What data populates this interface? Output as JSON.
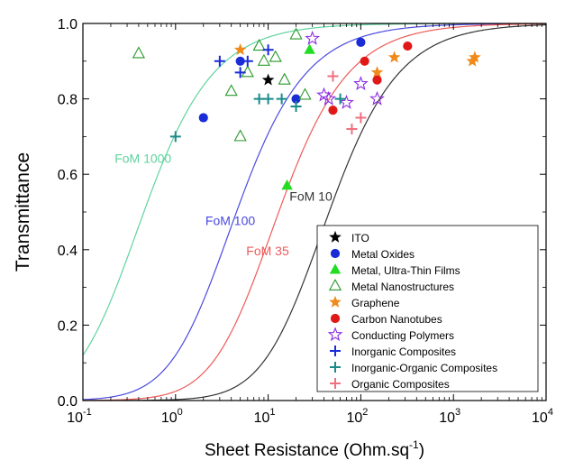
{
  "chart_data": {
    "type": "scatter",
    "xlabel": "Sheet Resistance (Ohm.sq",
    "xlabel_sup": "-1",
    "xlabel_close": ")",
    "ylabel": "Transmittance",
    "x_scale": "log",
    "xlim": [
      0.1,
      10000
    ],
    "ylim": [
      0.0,
      1.0
    ],
    "x_ticks": [
      {
        "base": "10",
        "exp": "-1",
        "value": 0.1
      },
      {
        "base": "10",
        "exp": "0",
        "value": 1
      },
      {
        "base": "10",
        "exp": "1",
        "value": 10
      },
      {
        "base": "10",
        "exp": "2",
        "value": 100
      },
      {
        "base": "10",
        "exp": "3",
        "value": 1000
      },
      {
        "base": "10",
        "exp": "4",
        "value": 10000
      }
    ],
    "y_ticks": [
      "0.0",
      "0.2",
      "0.4",
      "0.6",
      "0.8",
      "1.0"
    ],
    "grid": false,
    "legend_position": "bottom-right",
    "curves": [
      {
        "label": "FoM 1000",
        "fom": 1000,
        "color": "#5fd3a0",
        "label_x": 0.22,
        "label_y": 0.63
      },
      {
        "label": "FoM 100",
        "fom": 100,
        "color": "#4a4ae0",
        "label_x": 2.1,
        "label_y": 0.465
      },
      {
        "label": "FoM 35",
        "fom": 35,
        "color": "#ee5a5a",
        "label_x": 5.8,
        "label_y": 0.385
      },
      {
        "label": "FoM 10",
        "fom": 10,
        "color": "#333333",
        "label_x": 17,
        "label_y": 0.53
      }
    ],
    "series": [
      {
        "name": "ITO",
        "marker": "star-filled",
        "color": "#000000",
        "points": [
          [
            10,
            0.85
          ]
        ]
      },
      {
        "name": "Metal Oxides",
        "marker": "circle",
        "color": "#1a2bd8",
        "points": [
          [
            2,
            0.75
          ],
          [
            5,
            0.9
          ],
          [
            20,
            0.8
          ],
          [
            100,
            0.95
          ]
        ]
      },
      {
        "name": "Metal, Ultra-Thin Films",
        "marker": "triangle-filled",
        "color": "#22dd22",
        "points": [
          [
            16,
            0.57
          ],
          [
            28,
            0.93
          ]
        ]
      },
      {
        "name": "Metal Nanostructures",
        "marker": "triangle-open",
        "color": "#2a9a2a",
        "points": [
          [
            0.4,
            0.92
          ],
          [
            4,
            0.82
          ],
          [
            5,
            0.7
          ],
          [
            6,
            0.87
          ],
          [
            8,
            0.94
          ],
          [
            9,
            0.9
          ],
          [
            12,
            0.91
          ],
          [
            15,
            0.85
          ],
          [
            20,
            0.97
          ],
          [
            25,
            0.81
          ]
        ]
      },
      {
        "name": "Graphene",
        "marker": "star-filled",
        "color": "#f08a1a",
        "points": [
          [
            5,
            0.93
          ],
          [
            150,
            0.87
          ],
          [
            230,
            0.91
          ],
          [
            1600,
            0.9
          ],
          [
            1700,
            0.91
          ]
        ]
      },
      {
        "name": "Carbon Nanotubes",
        "marker": "circle",
        "color": "#e01818",
        "points": [
          [
            50,
            0.77
          ],
          [
            110,
            0.9
          ],
          [
            150,
            0.85
          ],
          [
            320,
            0.94
          ]
        ]
      },
      {
        "name": "Conducting Polymers",
        "marker": "star-open",
        "color": "#8a2be2",
        "points": [
          [
            30,
            0.96
          ],
          [
            40,
            0.81
          ],
          [
            45,
            0.8
          ],
          [
            70,
            0.79
          ],
          [
            100,
            0.84
          ],
          [
            150,
            0.8
          ]
        ]
      },
      {
        "name": "Inorganic Composites",
        "marker": "plus",
        "color": "#1a2bd8",
        "points": [
          [
            3,
            0.9
          ],
          [
            5,
            0.87
          ],
          [
            6,
            0.9
          ],
          [
            10,
            0.93
          ]
        ]
      },
      {
        "name": "Inorganic-Organic Composites",
        "marker": "plus",
        "color": "#1a8a8a",
        "points": [
          [
            1,
            0.7
          ],
          [
            8,
            0.8
          ],
          [
            10,
            0.8
          ],
          [
            14,
            0.8
          ],
          [
            20,
            0.78
          ],
          [
            60,
            0.8
          ]
        ]
      },
      {
        "name": "Organic Composites",
        "marker": "plus",
        "color": "#f07080",
        "points": [
          [
            50,
            0.86
          ],
          [
            80,
            0.72
          ],
          [
            100,
            0.75
          ]
        ]
      }
    ]
  }
}
